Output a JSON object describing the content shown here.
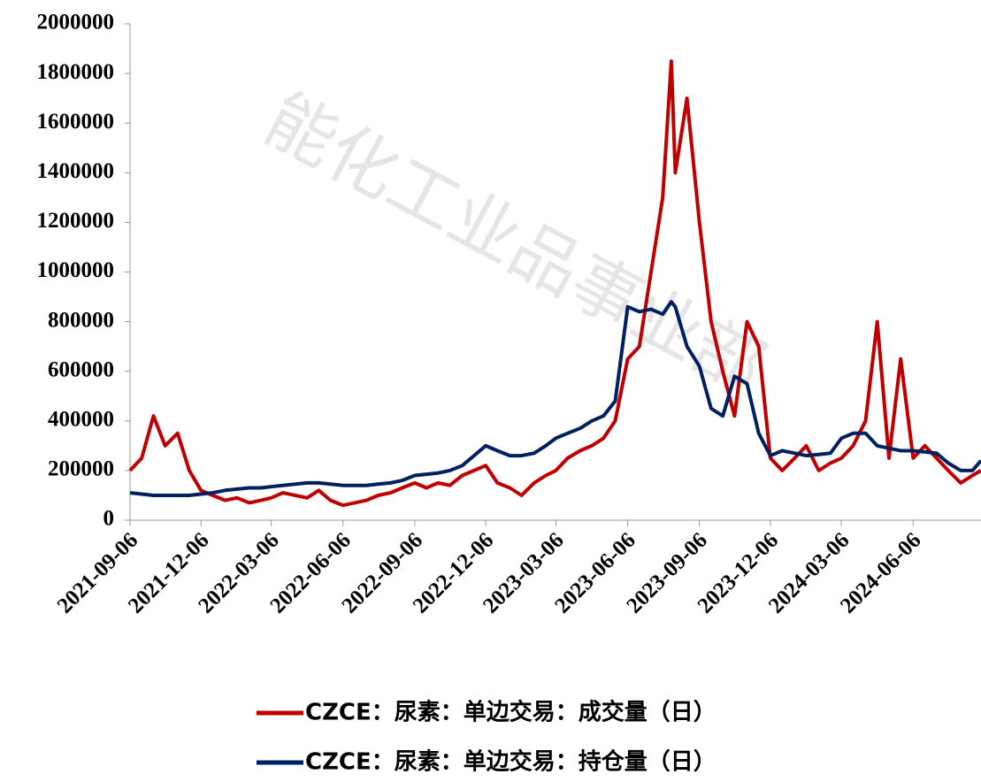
{
  "chart_data": {
    "type": "line",
    "watermark": "能化工业品事业部",
    "x": [
      "2021-09-06",
      "2021-09-21",
      "2021-10-06",
      "2021-10-21",
      "2021-11-06",
      "2021-11-21",
      "2021-12-06",
      "2021-12-21",
      "2022-01-06",
      "2022-01-21",
      "2022-02-06",
      "2022-02-21",
      "2022-03-06",
      "2022-03-21",
      "2022-04-06",
      "2022-04-21",
      "2022-05-06",
      "2022-05-21",
      "2022-06-06",
      "2022-06-21",
      "2022-07-06",
      "2022-07-21",
      "2022-08-06",
      "2022-08-21",
      "2022-09-06",
      "2022-09-21",
      "2022-10-06",
      "2022-10-21",
      "2022-11-06",
      "2022-11-21",
      "2022-12-06",
      "2022-12-21",
      "2023-01-06",
      "2023-01-21",
      "2023-02-06",
      "2023-02-21",
      "2023-03-06",
      "2023-03-21",
      "2023-04-06",
      "2023-04-21",
      "2023-05-06",
      "2023-05-21",
      "2023-06-06",
      "2023-06-21",
      "2023-07-06",
      "2023-07-21",
      "2023-08-01",
      "2023-08-06",
      "2023-08-21",
      "2023-09-06",
      "2023-09-21",
      "2023-10-06",
      "2023-10-21",
      "2023-11-06",
      "2023-11-21",
      "2023-12-06",
      "2023-12-21",
      "2024-01-06",
      "2024-01-21",
      "2024-02-06",
      "2024-02-21",
      "2024-03-06",
      "2024-03-21",
      "2024-04-06",
      "2024-04-21",
      "2024-05-06",
      "2024-05-21",
      "2024-06-06",
      "2024-06-21",
      "2024-07-06",
      "2024-07-21",
      "2024-08-06",
      "2024-08-21",
      "2024-09-01"
    ],
    "series": [
      {
        "name": "CZCE：尿素：单边交易：成交量（日）",
        "color": "#c00000",
        "values": [
          200000,
          250000,
          420000,
          300000,
          350000,
          200000,
          120000,
          100000,
          80000,
          90000,
          70000,
          80000,
          90000,
          110000,
          100000,
          90000,
          120000,
          80000,
          60000,
          70000,
          80000,
          100000,
          110000,
          130000,
          150000,
          130000,
          150000,
          140000,
          180000,
          200000,
          220000,
          150000,
          130000,
          100000,
          150000,
          180000,
          200000,
          250000,
          280000,
          300000,
          330000,
          400000,
          650000,
          700000,
          1000000,
          1300000,
          1850000,
          1400000,
          1700000,
          1200000,
          800000,
          600000,
          420000,
          800000,
          700000,
          250000,
          200000,
          250000,
          300000,
          200000,
          230000,
          250000,
          300000,
          400000,
          800000,
          250000,
          650000,
          250000,
          300000,
          250000,
          200000,
          150000,
          180000,
          200000
        ]
      },
      {
        "name": "CZCE：尿素：单边交易：持仓量（日）",
        "color": "#002060",
        "values": [
          110000,
          105000,
          100000,
          100000,
          100000,
          100000,
          105000,
          110000,
          120000,
          125000,
          130000,
          130000,
          135000,
          140000,
          145000,
          150000,
          150000,
          145000,
          140000,
          140000,
          140000,
          145000,
          150000,
          160000,
          180000,
          185000,
          190000,
          200000,
          220000,
          260000,
          300000,
          280000,
          260000,
          260000,
          270000,
          300000,
          330000,
          350000,
          370000,
          400000,
          420000,
          480000,
          860000,
          840000,
          850000,
          830000,
          880000,
          860000,
          700000,
          620000,
          450000,
          420000,
          580000,
          550000,
          350000,
          260000,
          280000,
          270000,
          260000,
          265000,
          270000,
          330000,
          350000,
          350000,
          300000,
          290000,
          280000,
          280000,
          275000,
          270000,
          230000,
          200000,
          200000,
          240000
        ]
      }
    ],
    "xlim": [
      "2021-09-06",
      "2024-09-01"
    ],
    "xticks": [
      "2021-09-06",
      "2021-12-06",
      "2022-03-06",
      "2022-06-06",
      "2022-09-06",
      "2022-12-06",
      "2023-03-06",
      "2023-06-06",
      "2023-09-06",
      "2023-12-06",
      "2024-03-06",
      "2024-06-06"
    ],
    "ylim": [
      0,
      2000000
    ],
    "yticks": [
      0,
      200000,
      400000,
      600000,
      800000,
      1000000,
      1200000,
      1400000,
      1600000,
      1800000,
      2000000
    ]
  }
}
